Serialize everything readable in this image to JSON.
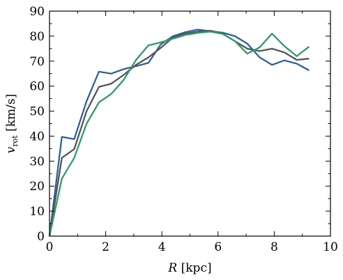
{
  "chart_data": {
    "type": "line",
    "title": "",
    "xlabel": {
      "symbol": "R",
      "unit": " [kpc]"
    },
    "ylabel": {
      "symbol": "v",
      "subscript": "rot",
      "unit": " [km/s]"
    },
    "xlim": [
      0,
      10
    ],
    "ylim": [
      0,
      90
    ],
    "xticks": [
      "0",
      "2",
      "4",
      "6",
      "8",
      "10"
    ],
    "yticks": [
      "0",
      "10",
      "20",
      "30",
      "40",
      "50",
      "60",
      "70",
      "80",
      "90"
    ],
    "grid": false,
    "legend": "none",
    "x": [
      0,
      0.44,
      0.88,
      1.32,
      1.76,
      2.2,
      2.64,
      3.08,
      3.52,
      3.96,
      4.4,
      4.84,
      5.28,
      5.72,
      6.16,
      6.6,
      7.04,
      7.48,
      7.92,
      8.36,
      8.8,
      9.24
    ],
    "series": [
      {
        "color": "#2e5f9e",
        "values": [
          0,
          39.7,
          38.8,
          54,
          65.8,
          65,
          66.8,
          68,
          69.3,
          76.7,
          80,
          81.6,
          82.6,
          82,
          81.4,
          80,
          77,
          71.5,
          68.5,
          70.3,
          69,
          66.3
        ]
      },
      {
        "color": "#555555",
        "values": [
          0,
          31.3,
          34.8,
          50,
          59.7,
          61,
          64.5,
          68.5,
          71.5,
          75.3,
          79.5,
          81,
          81.8,
          82.2,
          81,
          78,
          75,
          74,
          75,
          73.5,
          70.5,
          71
        ]
      },
      {
        "color": "#2f9a6a",
        "values": [
          0,
          23,
          31.3,
          45,
          53.5,
          56.9,
          62.5,
          70.5,
          76.3,
          77.5,
          79,
          80.5,
          81.3,
          81.8,
          80.9,
          78,
          73,
          75.5,
          81,
          76,
          72,
          75.8
        ]
      }
    ]
  }
}
